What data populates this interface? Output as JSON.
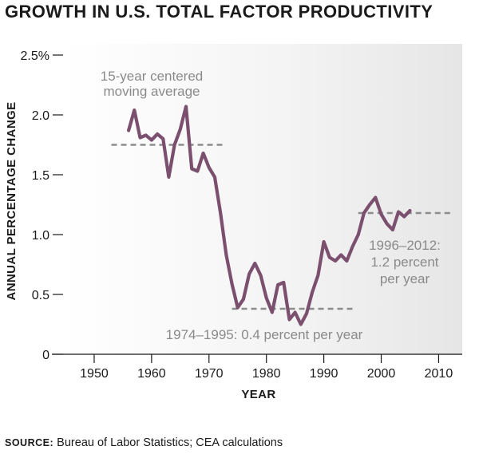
{
  "chart_data": {
    "type": "line",
    "title": "GROWTH IN U.S. TOTAL FACTOR PRODUCTIVITY",
    "xlabel": "YEAR",
    "ylabel": "ANNUAL PERCENTAGE CHANGE",
    "xlim": [
      1945,
      2013
    ],
    "ylim": [
      0,
      2.5
    ],
    "x_ticks": [
      1950,
      1960,
      1970,
      1980,
      1990,
      2000,
      2010
    ],
    "y_ticks": [
      {
        "value": 0,
        "label": "0"
      },
      {
        "value": 0.5,
        "label": "0.5"
      },
      {
        "value": 1.0,
        "label": "1.0"
      },
      {
        "value": 1.5,
        "label": "1.5"
      },
      {
        "value": 2.0,
        "label": "2.0"
      },
      {
        "value": 2.5,
        "label": "2.5%"
      }
    ],
    "series": [
      {
        "name": "15-year centered moving average",
        "color": "#7b4f6e",
        "x": [
          1956,
          1957,
          1958,
          1959,
          1960,
          1961,
          1962,
          1963,
          1964,
          1965,
          1966,
          1967,
          1968,
          1969,
          1970,
          1971,
          1972,
          1973,
          1974,
          1975,
          1976,
          1977,
          1978,
          1979,
          1980,
          1981,
          1982,
          1983,
          1984,
          1985,
          1986,
          1987,
          1988,
          1989,
          1990,
          1991,
          1992,
          1993,
          1994,
          1995,
          1996,
          1997,
          1998,
          1999,
          2000,
          2001,
          2002,
          2003,
          2004,
          2005
        ],
        "values": [
          1.87,
          2.04,
          1.81,
          1.83,
          1.79,
          1.84,
          1.8,
          1.48,
          1.75,
          1.88,
          2.07,
          1.55,
          1.53,
          1.68,
          1.56,
          1.48,
          1.18,
          0.83,
          0.59,
          0.39,
          0.46,
          0.67,
          0.76,
          0.66,
          0.47,
          0.35,
          0.58,
          0.6,
          0.29,
          0.35,
          0.25,
          0.34,
          0.52,
          0.66,
          0.94,
          0.81,
          0.78,
          0.83,
          0.78,
          0.9,
          1.0,
          1.18,
          1.25,
          1.31,
          1.17,
          1.09,
          1.04,
          1.19,
          1.15,
          1.2
        ]
      }
    ],
    "reference_lines": [
      {
        "x_start": 1953,
        "x_end": 1973,
        "value": 1.75
      },
      {
        "x_start": 1974,
        "x_end": 1995,
        "value": 0.38
      },
      {
        "x_start": 1996,
        "x_end": 2012,
        "value": 1.18
      }
    ],
    "annotations": [
      {
        "lines": [
          "15-year centered",
          "moving average"
        ]
      },
      {
        "lines": [
          "1974–1995: 0.4 percent per year"
        ]
      },
      {
        "lines": [
          "1996–2012:",
          "1.2 percent",
          "per year"
        ]
      }
    ]
  },
  "source": {
    "label": "SOURCE:",
    "text": " Bureau of Labor Statistics; CEA calculations"
  }
}
